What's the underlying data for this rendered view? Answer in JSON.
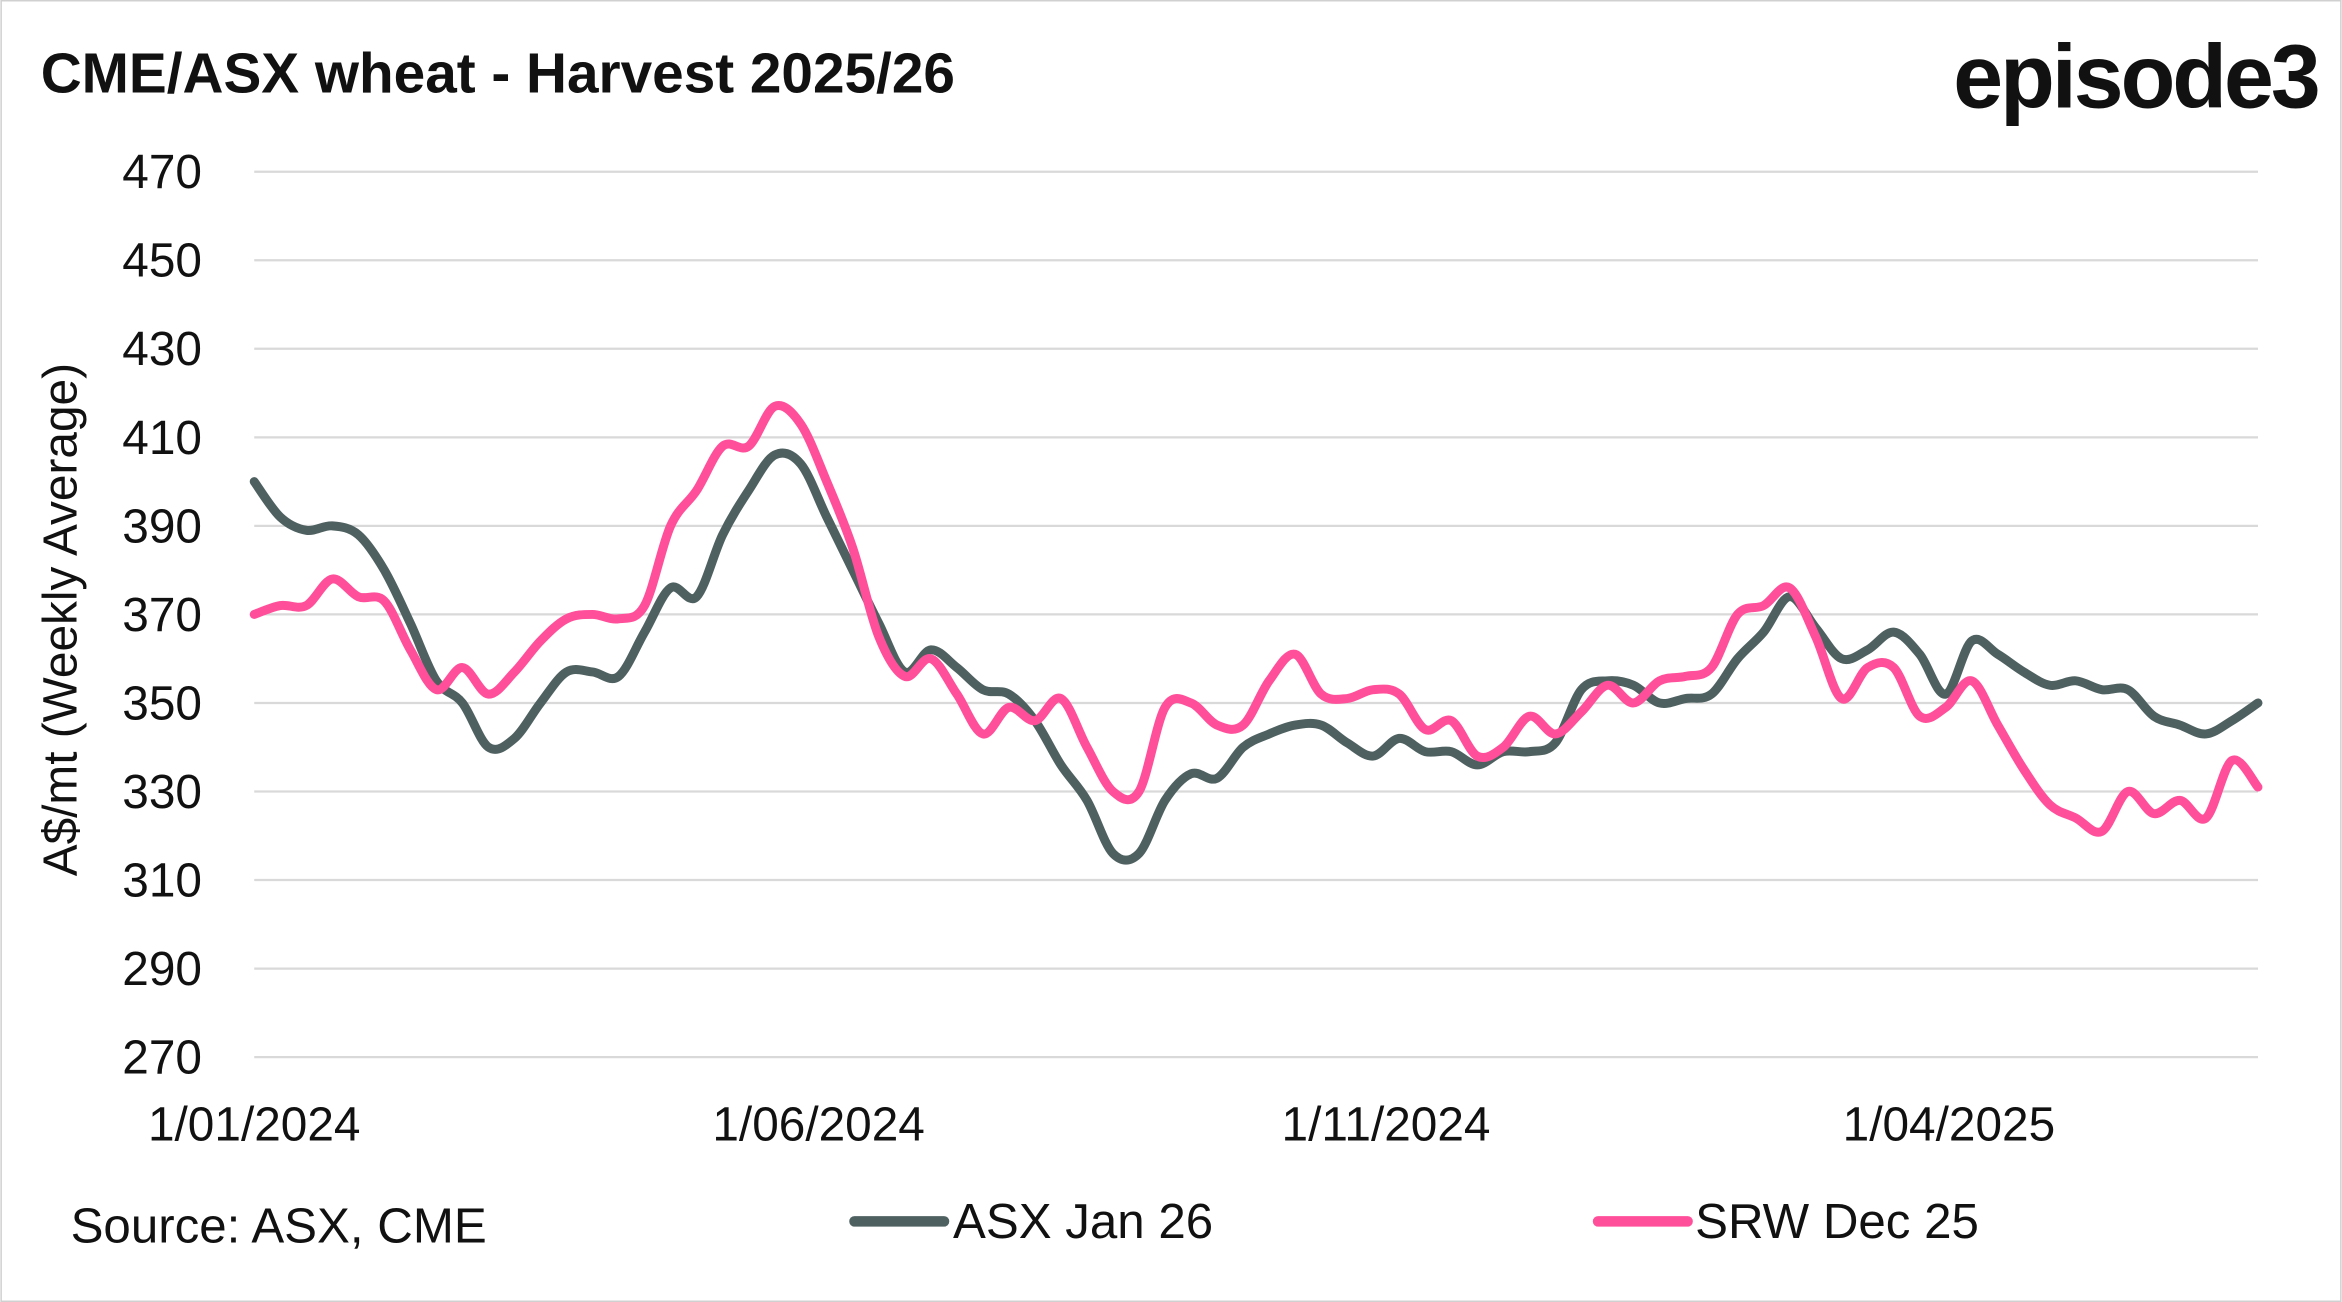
{
  "header": {
    "title": "CME/ASX wheat - Harvest 2025/26",
    "logo": "episode3"
  },
  "footer": {
    "source": "Source: ASX, CME"
  },
  "colors": {
    "asx": "#4f6060",
    "srw": "#ff4f9a",
    "grid": "#d9d9d9"
  },
  "chart_data": {
    "type": "line",
    "title": "CME/ASX wheat - Harvest 2025/26",
    "xlabel": "",
    "ylabel": "A$/mt (Weekly Average)",
    "ylim": [
      270,
      470
    ],
    "yticks": [
      "470",
      "450",
      "430",
      "410",
      "390",
      "370",
      "350",
      "330",
      "310",
      "290",
      "270"
    ],
    "xticks": [
      "1/01/2024",
      "1/06/2024",
      "1/11/2024",
      "1/04/2025"
    ],
    "x_frequency": "weekly, from 1/01/2024",
    "grid": true,
    "legend_placement": "bottom",
    "series": [
      {
        "name": "ASX Jan 26",
        "values": [
          400,
          392,
          389,
          390,
          388,
          380,
          368,
          355,
          350,
          340,
          342,
          350,
          357,
          357,
          356,
          366,
          376,
          374,
          388,
          398,
          406,
          404,
          392,
          380,
          368,
          357,
          362,
          358,
          353,
          352,
          346,
          336,
          328,
          316,
          316,
          328,
          334,
          333,
          340,
          343,
          345,
          345,
          341,
          338,
          342,
          339,
          339,
          336,
          339,
          339,
          341,
          353,
          355,
          354,
          350,
          351,
          352,
          360,
          366,
          374,
          367,
          360,
          362,
          366,
          361,
          352,
          364,
          361,
          357,
          354,
          355,
          353,
          353,
          347,
          345,
          343,
          346,
          350
        ]
      },
      {
        "name": "SRW Dec 25",
        "values": [
          370,
          372,
          372,
          378,
          374,
          373,
          362,
          353,
          358,
          352,
          357,
          364,
          369,
          370,
          369,
          372,
          390,
          398,
          408,
          408,
          417,
          413,
          400,
          385,
          365,
          356,
          360,
          352,
          343,
          349,
          346,
          351,
          340,
          330,
          330,
          349,
          350,
          345,
          345,
          355,
          361,
          352,
          351,
          353,
          352,
          344,
          346,
          338,
          340,
          347,
          343,
          348,
          354,
          350,
          355,
          356,
          358,
          370,
          372,
          376,
          365,
          351,
          358,
          358,
          347,
          349,
          355,
          345,
          335,
          327,
          324,
          321,
          330,
          325,
          328,
          324,
          337,
          331
        ]
      }
    ]
  }
}
